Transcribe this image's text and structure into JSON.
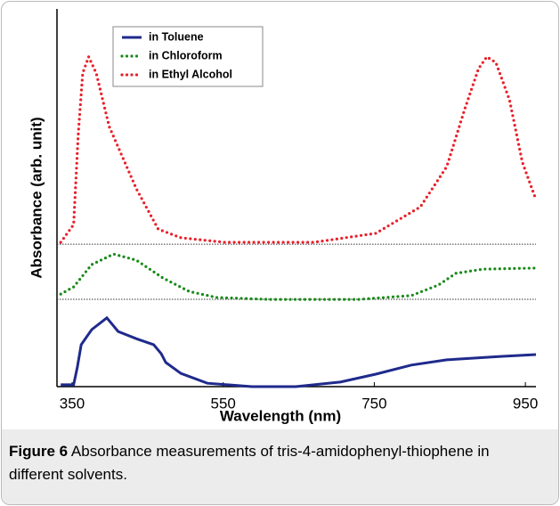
{
  "chart_data": {
    "type": "line",
    "x_label": "Wavelength (nm)",
    "y_label": "Absorbance (arb. unit)",
    "xlim": [
      330,
      964
    ],
    "xticks": [
      350,
      550,
      750,
      950
    ],
    "ylim": [
      0,
      100
    ],
    "hlines": [
      37.7,
      23.1
    ],
    "legend": "top-left",
    "series": [
      {
        "name": "in Toluene",
        "color": "#1f2a8c",
        "dash": "solid",
        "x": [
          335,
          352,
          357,
          362,
          376,
          396,
          411,
          435,
          458,
          468,
          474,
          494,
          529,
          588,
          646,
          705,
          752,
          799,
          846,
          917,
          964
        ],
        "values": [
          0.5,
          0.5,
          5.2,
          11.1,
          15.1,
          18.2,
          14.6,
          12.7,
          11.1,
          8.7,
          6.4,
          3.5,
          0.9,
          0,
          0,
          1.2,
          3.3,
          5.7,
          7.1,
          8.0,
          8.5
        ]
      },
      {
        "name": "in Chloroform",
        "color": "#1a8a1a",
        "dash": "dotted",
        "x": [
          335,
          352,
          376,
          405,
          435,
          470,
          505,
          541,
          611,
          729,
          799,
          835,
          858,
          894,
          964
        ],
        "values": [
          24.5,
          26.4,
          32.3,
          35.1,
          33.5,
          28.8,
          25.2,
          23.6,
          23.1,
          23.1,
          24.1,
          26.9,
          30.0,
          31.1,
          31.4
        ]
      },
      {
        "name": "in Ethyl Alcohol",
        "color": "#e8202a",
        "dash": "dotted",
        "x": [
          335,
          352,
          358,
          364,
          372,
          382,
          399,
          435,
          464,
          494,
          552,
          670,
          752,
          811,
          846,
          870,
          888,
          899,
          911,
          929,
          946,
          964
        ],
        "values": [
          38.2,
          42.9,
          66.5,
          83.0,
          87.3,
          83.0,
          68.9,
          52.4,
          41.7,
          39.4,
          38.2,
          38.2,
          40.6,
          47.6,
          58.3,
          73.6,
          84.2,
          87.3,
          85.8,
          75.9,
          59.4,
          49.5
        ]
      }
    ]
  },
  "caption": {
    "label": "Figure 6",
    "text": "Absorbance measurements of tris-4-amidophenyl-thiophene in different solvents."
  }
}
